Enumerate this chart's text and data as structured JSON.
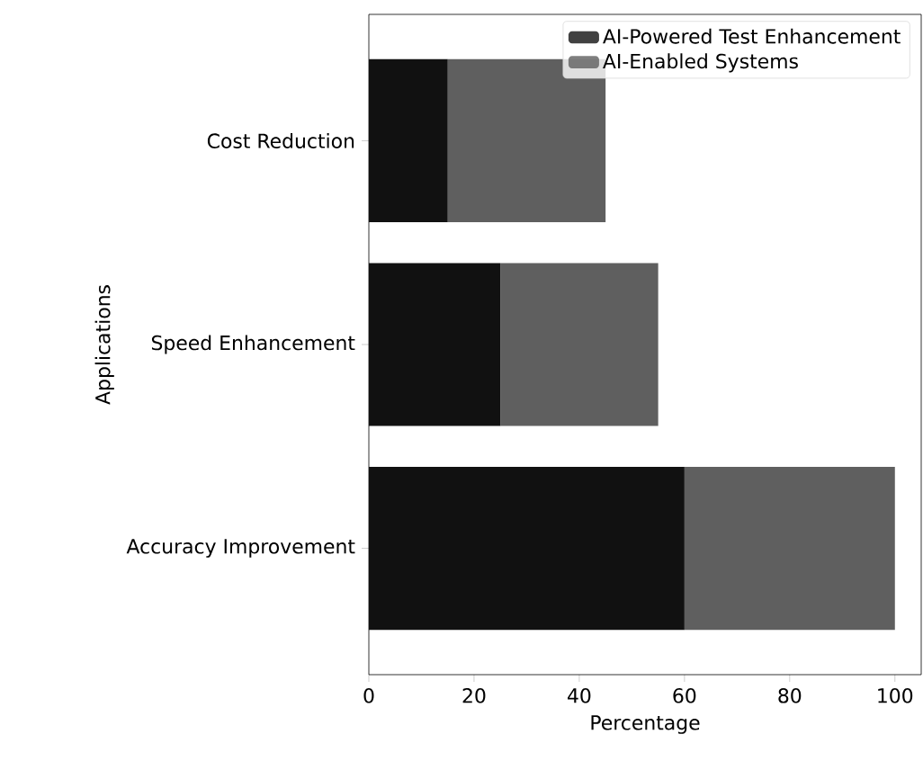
{
  "chart_data": {
    "type": "bar",
    "orientation": "horizontal",
    "stacked": true,
    "xlabel": "Percentage",
    "ylabel": "Applications",
    "categories": [
      "Cost Reduction",
      "Speed Enhancement",
      "Accuracy Improvement"
    ],
    "series": [
      {
        "name": "AI-Powered Test Enhancement",
        "color": "#111111",
        "values": [
          15,
          25,
          60
        ]
      },
      {
        "name": "AI-Enabled Systems",
        "color": "#5f5f5f",
        "values": [
          30,
          30,
          40
        ]
      }
    ],
    "xlim": [
      0,
      105
    ],
    "xticks": [
      0,
      20,
      40,
      60,
      80,
      100
    ],
    "legend": "top right"
  }
}
